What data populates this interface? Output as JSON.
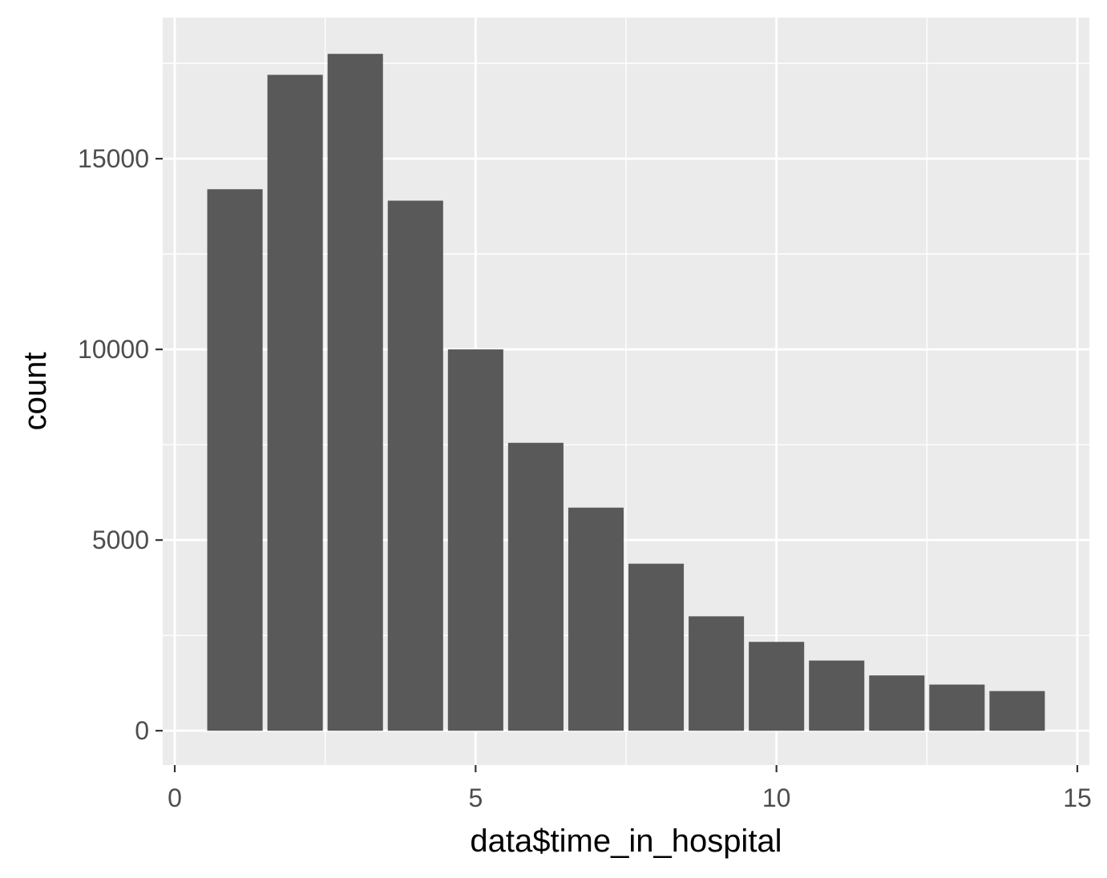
{
  "chart_data": {
    "type": "bar",
    "xlabel": "data$time_in_hospital",
    "ylabel": "count",
    "x": [
      1,
      2,
      3,
      4,
      5,
      6,
      7,
      8,
      9,
      10,
      11,
      12,
      13,
      14
    ],
    "values": [
      14200,
      17200,
      17750,
      13900,
      10000,
      7550,
      5850,
      4380,
      3000,
      2330,
      1840,
      1450,
      1210,
      1040
    ],
    "xlim": [
      -0.2,
      15.2
    ],
    "ylim": [
      -900,
      18700
    ],
    "x_ticks": [
      0,
      5,
      10,
      15
    ],
    "x_tick_labels": [
      "0",
      "5",
      "10",
      "15"
    ],
    "y_ticks": [
      0,
      5000,
      10000,
      15000
    ],
    "y_tick_labels": [
      "0",
      "5000",
      "10000",
      "15000"
    ],
    "grid": true,
    "colors": {
      "panel_background": "#ebebeb",
      "grid": "#ffffff",
      "bar_fill": "#595959",
      "tick_label": "#4d4d4d",
      "tick_mark": "#333333",
      "axis_title": "#000000"
    }
  }
}
